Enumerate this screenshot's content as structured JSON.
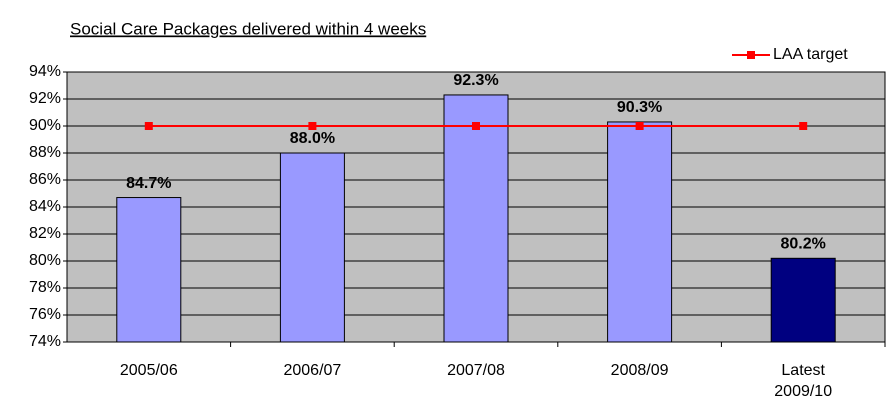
{
  "chart_data": {
    "type": "bar",
    "title": "Social Care Packages delivered within 4 weeks",
    "categories": [
      "2005/06",
      "2006/07",
      "2007/08",
      "2008/09",
      "Latest 2009/10"
    ],
    "values": [
      84.7,
      88.0,
      92.3,
      90.3,
      80.2
    ],
    "value_labels": [
      "84.7%",
      "88.0%",
      "92.3%",
      "90.3%",
      "80.2%"
    ],
    "colors": [
      "#9999ff",
      "#9999ff",
      "#9999ff",
      "#9999ff",
      "#000080"
    ],
    "line": {
      "type": "line",
      "name": "LAA target",
      "color": "#ff0000",
      "values": [
        90,
        90,
        90,
        90,
        90
      ]
    },
    "ylim": [
      74,
      94
    ],
    "yticks": [
      {
        "value": 74,
        "label": "74%"
      },
      {
        "value": 76,
        "label": "76%"
      },
      {
        "value": 78,
        "label": "78%"
      },
      {
        "value": 80,
        "label": "80%"
      },
      {
        "value": 82,
        "label": "82%"
      },
      {
        "value": 84,
        "label": "84%"
      },
      {
        "value": 86,
        "label": "86%"
      },
      {
        "value": 88,
        "label": "88%"
      },
      {
        "value": 90,
        "label": "90%"
      },
      {
        "value": 92,
        "label": "92%"
      },
      {
        "value": 94,
        "label": "94%"
      }
    ],
    "grid": true,
    "legend": "top-right",
    "background": "#c0c0c0"
  }
}
